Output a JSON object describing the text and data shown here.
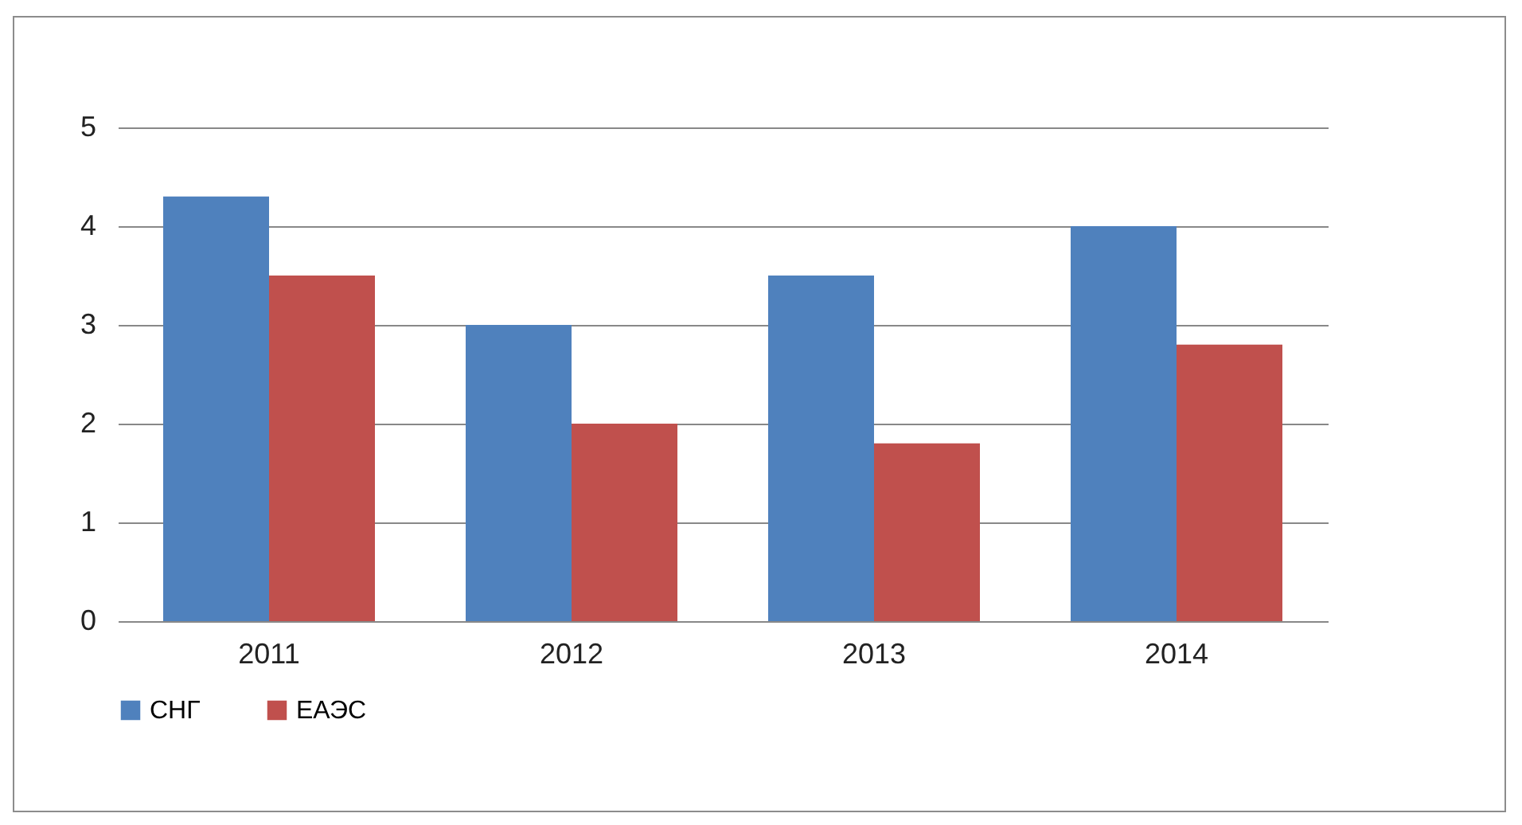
{
  "chart_data": {
    "type": "bar",
    "categories": [
      "2011",
      "2012",
      "2013",
      "2014"
    ],
    "series": [
      {
        "name": "СНГ",
        "color": "#4f81bd",
        "values": [
          4.3,
          3.0,
          3.5,
          4.0
        ]
      },
      {
        "name": "ЕАЭС",
        "color": "#c0504d",
        "values": [
          3.5,
          2.0,
          1.8,
          2.8
        ]
      }
    ],
    "ylim": [
      0,
      5
    ],
    "yticks": [
      0,
      1,
      2,
      3,
      4,
      5
    ],
    "grid": "y",
    "legend": "bottom"
  }
}
